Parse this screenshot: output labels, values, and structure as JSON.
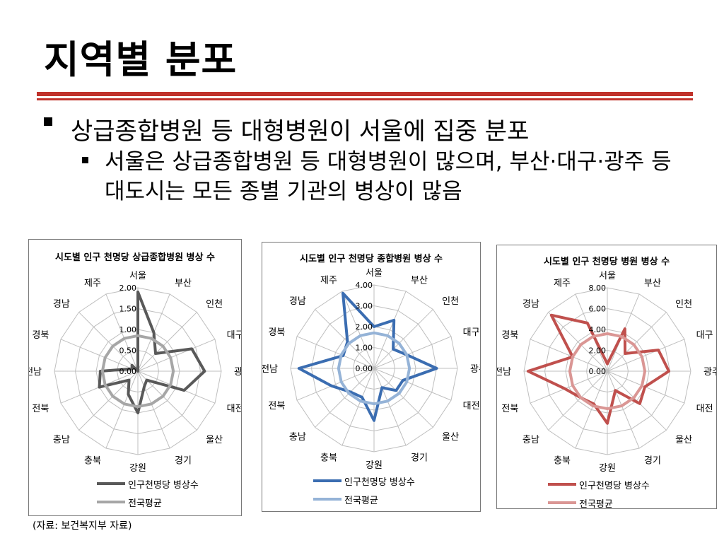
{
  "slide": {
    "title": "지역별 분포",
    "bullet1": "상급종합병원 등 대형병원이 서울에 집중 분포",
    "bullet2": "서울은 상급종합병원 등 대형병원이 많으며, 부산·대구·광주 등 대도시는 모든 종별 기관의 병상이 많음",
    "source": "(자료: 보건복지부 자료)"
  },
  "chart_data": [
    {
      "type": "radar",
      "title": "시도별 인구 천명당 상급종합병원 병상 수",
      "categories": [
        "서울",
        "부산",
        "인천",
        "대구",
        "광주",
        "대전",
        "울산",
        "경기",
        "강원",
        "충북",
        "충남",
        "전북",
        "전남",
        "경북",
        "경남",
        "제주"
      ],
      "rlim": [
        0,
        2.0
      ],
      "ticks": [
        "0.00",
        "0.50",
        "1.00",
        "1.50",
        "2.00"
      ],
      "colors": {
        "series": "#595959",
        "average": "#a6a6a6"
      },
      "series": [
        {
          "name": "인구천명당 병상수",
          "values": [
            1.9,
            1.0,
            0.6,
            1.4,
            1.6,
            1.2,
            0.3,
            0.4,
            1.0,
            0.6,
            0.3,
            1.0,
            0.9,
            0.15,
            0.2,
            0.0
          ]
        },
        {
          "name": "전국평균",
          "values": [
            0.85,
            0.85,
            0.85,
            0.85,
            0.85,
            0.85,
            0.85,
            0.85,
            0.85,
            0.85,
            0.85,
            0.85,
            0.85,
            0.85,
            0.85,
            0.85
          ]
        }
      ]
    },
    {
      "type": "radar",
      "title": "시도별 인구 천명당 종합병원 병상 수",
      "categories": [
        "서울",
        "부산",
        "인천",
        "대구",
        "광주",
        "대전",
        "울산",
        "경기",
        "강원",
        "충북",
        "충남",
        "전북",
        "전남",
        "경북",
        "경남",
        "제주"
      ],
      "rlim": [
        0,
        4.0
      ],
      "ticks": [
        "0.00",
        "1.00",
        "2.00",
        "3.00",
        "4.00"
      ],
      "colors": {
        "series": "#3b6db1",
        "average": "#95b3d7"
      },
      "series": [
        {
          "name": "인구천명당 병상수",
          "values": [
            2.0,
            2.5,
            1.3,
            1.7,
            3.0,
            1.5,
            1.5,
            1.0,
            2.5,
            1.5,
            1.6,
            2.2,
            3.6,
            1.6,
            1.8,
            3.9
          ]
        },
        {
          "name": "전국평균",
          "values": [
            1.7,
            1.7,
            1.7,
            1.7,
            1.7,
            1.7,
            1.7,
            1.7,
            1.7,
            1.7,
            1.7,
            1.7,
            1.7,
            1.7,
            1.7,
            1.7
          ]
        }
      ]
    },
    {
      "type": "radar",
      "title": "시도별 인구 천명당 병원 병상 수",
      "categories": [
        "서울",
        "부산",
        "인천",
        "대구",
        "광주",
        "대전",
        "울산",
        "경기",
        "강원",
        "충북",
        "충남",
        "전북",
        "전남",
        "경북",
        "경남",
        "제주"
      ],
      "rlim": [
        0,
        8.0
      ],
      "ticks": [
        "0.00",
        "2.00",
        "4.00",
        "6.00",
        "8.00"
      ],
      "colors": {
        "series": "#c0504d",
        "average": "#da9694"
      },
      "series": [
        {
          "name": "인구천명당 병상수",
          "values": [
            0.7,
            4.4,
            2.4,
            5.3,
            5.9,
            3.9,
            4.4,
            2.0,
            5.0,
            3.4,
            3.6,
            4.4,
            7.6,
            3.6,
            7.6,
            5.0
          ]
        },
        {
          "name": "전국평균",
          "values": [
            3.6,
            3.6,
            3.6,
            3.6,
            3.6,
            3.6,
            3.6,
            3.6,
            3.6,
            3.6,
            3.6,
            3.6,
            3.6,
            3.6,
            3.6,
            3.6
          ]
        }
      ]
    }
  ]
}
